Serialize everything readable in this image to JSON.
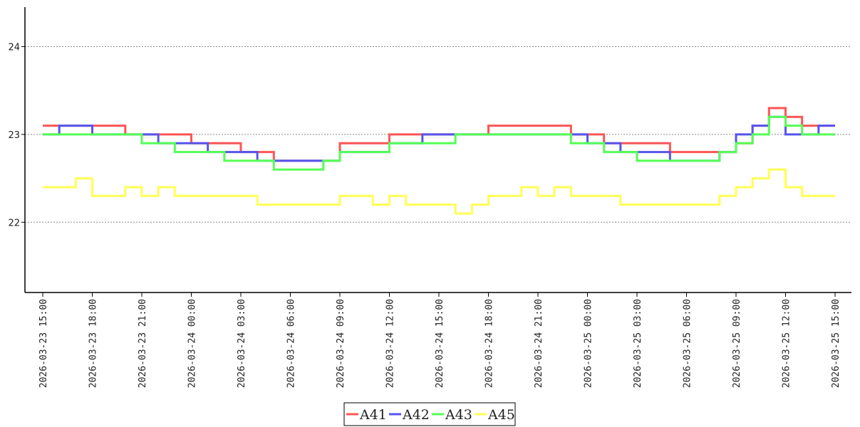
{
  "chart_data": {
    "type": "line",
    "step": true,
    "title": "",
    "xlabel": "",
    "ylabel": "",
    "ylim": [
      21.2,
      24.45
    ],
    "yticks": [
      "22",
      "23",
      "24"
    ],
    "xlim": [
      "2026-03-23 15:00",
      "2026-03-25 15:00"
    ],
    "x": [
      "2026-03-23 15:00",
      "2026-03-23 16:00",
      "2026-03-23 17:00",
      "2026-03-23 18:00",
      "2026-03-23 19:00",
      "2026-03-23 20:00",
      "2026-03-23 21:00",
      "2026-03-23 22:00",
      "2026-03-23 23:00",
      "2026-03-24 00:00",
      "2026-03-24 01:00",
      "2026-03-24 02:00",
      "2026-03-24 03:00",
      "2026-03-24 04:00",
      "2026-03-24 05:00",
      "2026-03-24 06:00",
      "2026-03-24 07:00",
      "2026-03-24 08:00",
      "2026-03-24 09:00",
      "2026-03-24 10:00",
      "2026-03-24 11:00",
      "2026-03-24 12:00",
      "2026-03-24 13:00",
      "2026-03-24 14:00",
      "2026-03-24 15:00",
      "2026-03-24 16:00",
      "2026-03-24 17:00",
      "2026-03-24 18:00",
      "2026-03-24 19:00",
      "2026-03-24 20:00",
      "2026-03-24 21:00",
      "2026-03-24 22:00",
      "2026-03-24 23:00",
      "2026-03-25 00:00",
      "2026-03-25 01:00",
      "2026-03-25 02:00",
      "2026-03-25 03:00",
      "2026-03-25 04:00",
      "2026-03-25 05:00",
      "2026-03-25 06:00",
      "2026-03-25 07:00",
      "2026-03-25 08:00",
      "2026-03-25 09:00",
      "2026-03-25 10:00",
      "2026-03-25 11:00",
      "2026-03-25 12:00",
      "2026-03-25 13:00",
      "2026-03-25 14:00",
      "2026-03-25 15:00"
    ],
    "xticks": [
      "2026-03-23 15:00",
      "2026-03-23 18:00",
      "2026-03-23 21:00",
      "2026-03-24 00:00",
      "2026-03-24 03:00",
      "2026-03-24 06:00",
      "2026-03-24 09:00",
      "2026-03-24 12:00",
      "2026-03-24 15:00",
      "2026-03-24 18:00",
      "2026-03-24 21:00",
      "2026-03-25 00:00",
      "2026-03-25 03:00",
      "2026-03-25 06:00",
      "2026-03-25 09:00",
      "2026-03-25 12:00",
      "2026-03-25 15:00"
    ],
    "grid": {
      "y": true,
      "x": false,
      "style": "dotted"
    },
    "legend_position": "bottom-center",
    "series": [
      {
        "name": "A41",
        "color": "#ff5555",
        "values": [
          23.1,
          23.1,
          23.1,
          23.1,
          23.1,
          23.0,
          23.0,
          23.0,
          23.0,
          22.9,
          22.9,
          22.9,
          22.8,
          22.8,
          22.7,
          22.7,
          22.7,
          22.7,
          22.9,
          22.9,
          22.9,
          23.0,
          23.0,
          23.0,
          23.0,
          23.0,
          23.0,
          23.1,
          23.1,
          23.1,
          23.1,
          23.1,
          23.0,
          23.0,
          22.9,
          22.9,
          22.9,
          22.9,
          22.8,
          22.8,
          22.8,
          22.8,
          22.9,
          23.1,
          23.3,
          23.2,
          23.1,
          23.1,
          23.1
        ]
      },
      {
        "name": "A42",
        "color": "#5555ee",
        "values": [
          23.0,
          23.1,
          23.1,
          23.0,
          23.0,
          23.0,
          23.0,
          22.9,
          22.9,
          22.9,
          22.8,
          22.8,
          22.8,
          22.7,
          22.7,
          22.7,
          22.7,
          22.7,
          22.8,
          22.8,
          22.8,
          22.9,
          22.9,
          23.0,
          23.0,
          23.0,
          23.0,
          23.0,
          23.0,
          23.0,
          23.0,
          23.0,
          23.0,
          22.9,
          22.9,
          22.8,
          22.8,
          22.8,
          22.7,
          22.7,
          22.7,
          22.8,
          23.0,
          23.1,
          23.2,
          23.0,
          23.0,
          23.1,
          23.1
        ]
      },
      {
        "name": "A43",
        "color": "#55ff55",
        "values": [
          23.0,
          23.0,
          23.0,
          23.0,
          23.0,
          23.0,
          22.9,
          22.9,
          22.8,
          22.8,
          22.8,
          22.7,
          22.7,
          22.7,
          22.6,
          22.6,
          22.6,
          22.7,
          22.8,
          22.8,
          22.8,
          22.9,
          22.9,
          22.9,
          22.9,
          23.0,
          23.0,
          23.0,
          23.0,
          23.0,
          23.0,
          23.0,
          22.9,
          22.9,
          22.8,
          22.8,
          22.7,
          22.7,
          22.7,
          22.7,
          22.7,
          22.8,
          22.9,
          23.0,
          23.2,
          23.1,
          23.0,
          23.0,
          23.0
        ]
      },
      {
        "name": "A45",
        "color": "#ffff55",
        "values": [
          22.4,
          22.4,
          22.5,
          22.3,
          22.3,
          22.4,
          22.3,
          22.4,
          22.3,
          22.3,
          22.3,
          22.3,
          22.3,
          22.2,
          22.2,
          22.2,
          22.2,
          22.2,
          22.3,
          22.3,
          22.2,
          22.3,
          22.2,
          22.2,
          22.2,
          22.1,
          22.2,
          22.3,
          22.3,
          22.4,
          22.3,
          22.4,
          22.3,
          22.3,
          22.3,
          22.2,
          22.2,
          22.2,
          22.2,
          22.2,
          22.2,
          22.3,
          22.4,
          22.5,
          22.6,
          22.4,
          22.3,
          22.3,
          22.3
        ]
      }
    ]
  }
}
